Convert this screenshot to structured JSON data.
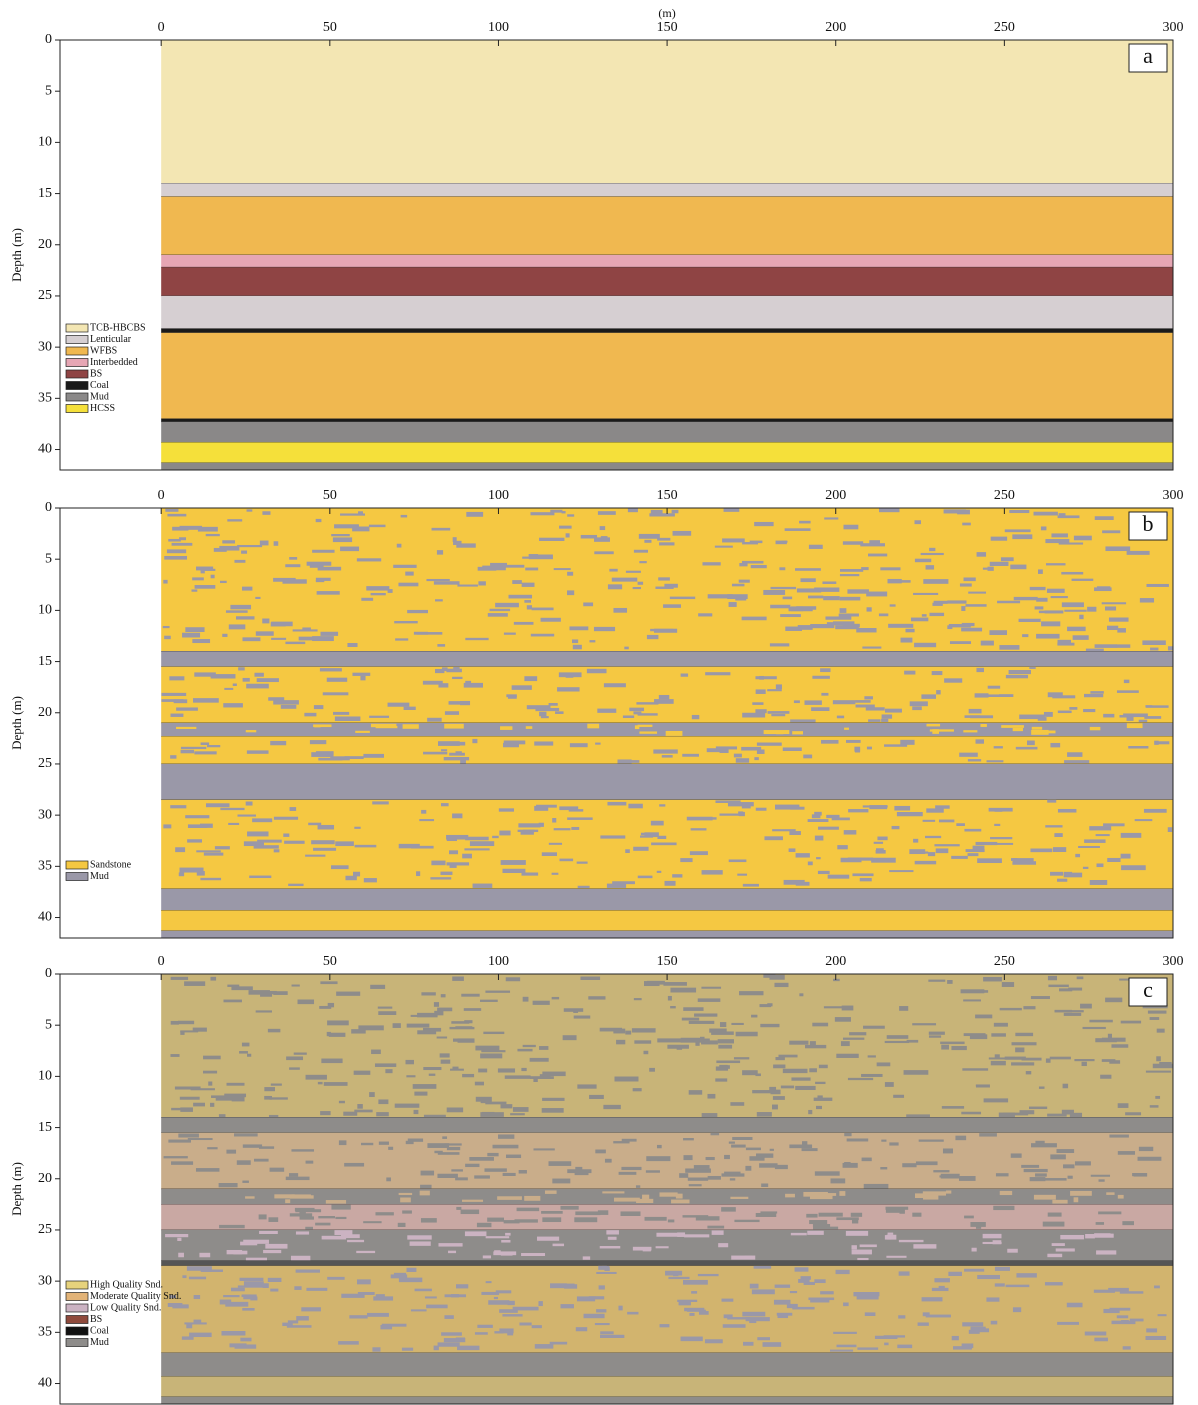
{
  "chart_data": [
    {
      "type": "section",
      "panel": "a",
      "xlabel": "(m)",
      "ylabel": "Depth (m)",
      "xlim": [
        -30,
        300
      ],
      "xticks": [
        0,
        50,
        100,
        150,
        200,
        250,
        300
      ],
      "ylim": [
        0,
        42
      ],
      "yticks": [
        0,
        5,
        10,
        15,
        20,
        25,
        30,
        35,
        40
      ],
      "legend": "lower left",
      "series": [
        {
          "name": "TCB-HBCBS",
          "color": "#f3e6b3"
        },
        {
          "name": "Lenticular",
          "color": "#d6cfd2"
        },
        {
          "name": "WFBS",
          "color": "#f0b850"
        },
        {
          "name": "Interbedded",
          "color": "#e6a6b4"
        },
        {
          "name": "BS",
          "color": "#8f4444"
        },
        {
          "name": "Coal",
          "color": "#1a1a1a"
        },
        {
          "name": "Mud",
          "color": "#8a8888"
        },
        {
          "name": "HCSS",
          "color": "#f5e03a"
        }
      ],
      "layers": [
        {
          "top": 0,
          "bottom": 14,
          "color": "#f3e6b3"
        },
        {
          "top": 14,
          "bottom": 15.3,
          "color": "#d6cfd2"
        },
        {
          "top": 15.3,
          "bottom": 21,
          "color": "#f0b850"
        },
        {
          "top": 21,
          "bottom": 22.2,
          "color": "#e6a6b4"
        },
        {
          "top": 22.2,
          "bottom": 25,
          "color": "#8f4444"
        },
        {
          "top": 25,
          "bottom": 28.2,
          "color": "#d6cfd2"
        },
        {
          "top": 28.2,
          "bottom": 28.6,
          "color": "#1a1a1a"
        },
        {
          "top": 28.6,
          "bottom": 37,
          "color": "#f0b850"
        },
        {
          "top": 37,
          "bottom": 37.3,
          "color": "#1a1a1a"
        },
        {
          "top": 37.3,
          "bottom": 39.3,
          "color": "#8a8888"
        },
        {
          "top": 39.3,
          "bottom": 41.3,
          "color": "#f5e03a"
        },
        {
          "top": 41.3,
          "bottom": 42,
          "color": "#8a8888"
        }
      ]
    },
    {
      "type": "section",
      "panel": "b",
      "ylabel": "Depth (m)",
      "xlim": [
        -30,
        300
      ],
      "xticks": [
        0,
        50,
        100,
        150,
        200,
        250,
        300
      ],
      "ylim": [
        0,
        42
      ],
      "yticks": [
        0,
        5,
        10,
        15,
        20,
        25,
        30,
        35,
        40
      ],
      "legend": "lower left",
      "series": [
        {
          "name": "Sandstone",
          "color": "#f5c842"
        },
        {
          "name": "Mud",
          "color": "#9a98a8"
        }
      ],
      "layers": [
        {
          "top": 0,
          "bottom": 14,
          "color": "#f5c842",
          "color2": "#9a98a8"
        },
        {
          "top": 14,
          "bottom": 15.5,
          "color": "#9a98a8"
        },
        {
          "top": 15.5,
          "bottom": 21,
          "color": "#f5c842",
          "color2": "#9a98a8"
        },
        {
          "top": 21,
          "bottom": 22.3,
          "color": "#9a98a8",
          "color2": "#f5c842"
        },
        {
          "top": 22.3,
          "bottom": 25,
          "color": "#f5c842",
          "color2": "#9a98a8"
        },
        {
          "top": 25,
          "bottom": 28.5,
          "color": "#9a98a8"
        },
        {
          "top": 28.5,
          "bottom": 37.2,
          "color": "#f5c842",
          "color2": "#9a98a8"
        },
        {
          "top": 37.2,
          "bottom": 39.3,
          "color": "#9a98a8"
        },
        {
          "top": 39.3,
          "bottom": 41.3,
          "color": "#f5c842"
        },
        {
          "top": 41.3,
          "bottom": 42,
          "color": "#9a98a8"
        }
      ]
    },
    {
      "type": "section",
      "panel": "c",
      "ylabel": "Depth (m)",
      "xlim": [
        -30,
        300
      ],
      "xticks": [
        0,
        50,
        100,
        150,
        200,
        250,
        300
      ],
      "ylim": [
        0,
        42
      ],
      "yticks": [
        0,
        5,
        10,
        15,
        20,
        25,
        30,
        35,
        40
      ],
      "legend": "lower left",
      "series": [
        {
          "name": "High Quality Snd.",
          "color": "#e6d27c"
        },
        {
          "name": "Moderate Quality Snd.",
          "color": "#e2b377"
        },
        {
          "name": "Low Quality Snd.",
          "color": "#cbb3c2"
        },
        {
          "name": "BS",
          "color": "#8f4a3c"
        },
        {
          "name": "Coal",
          "color": "#111111"
        },
        {
          "name": "Mud",
          "color": "#8e8c8a"
        }
      ],
      "layers": [
        {
          "top": 0,
          "bottom": 14,
          "color": "#c8b478",
          "color2": "#8e8c8a"
        },
        {
          "top": 14,
          "bottom": 15.5,
          "color": "#8e8c8a"
        },
        {
          "top": 15.5,
          "bottom": 21,
          "color": "#c9ad8a",
          "color2": "#8e8c8a"
        },
        {
          "top": 21,
          "bottom": 22.5,
          "color": "#8e8c8a",
          "color2": "#c9ad8a"
        },
        {
          "top": 22.5,
          "bottom": 25,
          "color": "#c9a8a3",
          "color2": "#8e8c8a"
        },
        {
          "top": 25,
          "bottom": 28,
          "color": "#8e8c8a",
          "color2": "#cbb3c2"
        },
        {
          "top": 28,
          "bottom": 28.5,
          "color": "#555555"
        },
        {
          "top": 28.5,
          "bottom": 37,
          "color": "#d2b46e",
          "color2": "#9a98a8"
        },
        {
          "top": 37,
          "bottom": 39.3,
          "color": "#8e8c8a"
        },
        {
          "top": 39.3,
          "bottom": 41.3,
          "color": "#c8b478"
        },
        {
          "top": 41.3,
          "bottom": 42,
          "color": "#8e8c8a"
        }
      ]
    }
  ]
}
